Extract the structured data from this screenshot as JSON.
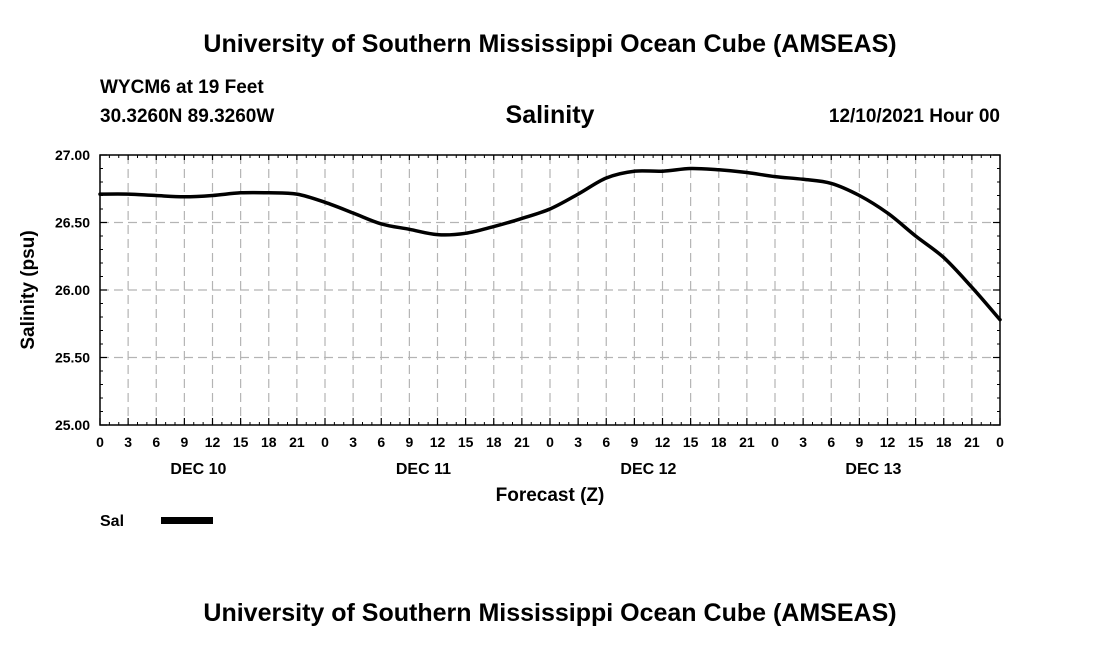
{
  "header": {
    "title": "University of Southern Mississippi Ocean Cube (AMSEAS)",
    "station": "WYCM6 at 19 Feet",
    "coords": "30.3260N  89.3260W",
    "chart_title": "Salinity",
    "run_time": "12/10/2021 Hour 00"
  },
  "footer": {
    "title": "University of Southern Mississippi Ocean Cube (AMSEAS)"
  },
  "chart_data": {
    "type": "line",
    "title": "Salinity",
    "xlabel": "Forecast (Z)",
    "ylabel": "Salinity (psu)",
    "ylim": [
      25.0,
      27.0
    ],
    "xlim": [
      0,
      96
    ],
    "grid": true,
    "y_ticks": [
      "25.00",
      "25.50",
      "26.00",
      "26.50",
      "27.00"
    ],
    "x_tick_labels": [
      "0",
      "3",
      "6",
      "9",
      "12",
      "15",
      "18",
      "21",
      "0",
      "3",
      "6",
      "9",
      "12",
      "15",
      "18",
      "21",
      "0",
      "3",
      "6",
      "9",
      "12",
      "15",
      "18",
      "21",
      "0",
      "3",
      "6",
      "9",
      "12",
      "15",
      "18",
      "21",
      "0"
    ],
    "day_labels": [
      "DEC 10",
      "DEC 11",
      "DEC 12",
      "DEC 13"
    ],
    "legend": {
      "placement": "bottom-left",
      "entries": [
        "Sal"
      ]
    },
    "series": [
      {
        "name": "Sal",
        "x": [
          0,
          3,
          6,
          9,
          12,
          15,
          18,
          21,
          24,
          27,
          30,
          33,
          36,
          39,
          42,
          45,
          48,
          51,
          54,
          57,
          60,
          63,
          66,
          69,
          72,
          75,
          78,
          81,
          84,
          87,
          90,
          93,
          96
        ],
        "values": [
          26.71,
          26.71,
          26.7,
          26.69,
          26.7,
          26.72,
          26.72,
          26.71,
          26.65,
          26.57,
          26.49,
          26.45,
          26.41,
          26.42,
          26.47,
          26.53,
          26.6,
          26.71,
          26.83,
          26.88,
          26.88,
          26.9,
          26.89,
          26.87,
          26.84,
          26.82,
          26.79,
          26.7,
          26.57,
          26.4,
          26.24,
          26.02,
          25.78
        ]
      }
    ]
  }
}
